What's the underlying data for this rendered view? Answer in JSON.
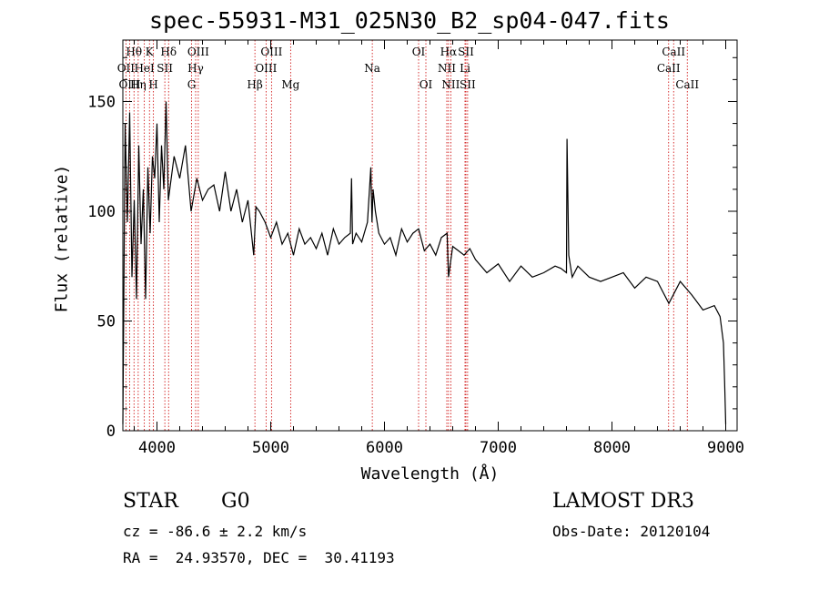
{
  "title": "spec-55931-M31_025N30_B2_sp04-047.fits",
  "footer": {
    "object_class": "STAR",
    "subclass": "G0",
    "survey": "LAMOST DR3",
    "redshift": "cz = -86.6 ± 2.2 km/s",
    "obs_date": "Obs-Date: 20120104",
    "coords": "RA =  24.93570, DEC =  30.41193"
  },
  "chart_data": {
    "type": "line",
    "title": "spec-55931-M31_025N30_B2_sp04-047.fits",
    "xlabel": "Wavelength (Å)",
    "ylabel": "Flux (relative)",
    "xlim": [
      3700,
      9100
    ],
    "ylim": [
      0,
      178
    ],
    "x_ticks": [
      4000,
      5000,
      6000,
      7000,
      8000,
      9000
    ],
    "x_tick_labels": [
      "4000",
      "5000",
      "6000",
      "7000",
      "8000",
      "9000"
    ],
    "y_ticks": [
      0,
      50,
      100,
      150
    ],
    "y_tick_labels": [
      "0",
      "50",
      "100",
      "150"
    ],
    "grid": false,
    "legend": "none",
    "line_color": "#000000",
    "marker_color": "#cc0000",
    "series": [
      {
        "x": [
          3700,
          3720,
          3740,
          3760,
          3780,
          3800,
          3820,
          3840,
          3860,
          3880,
          3900,
          3920,
          3940,
          3960,
          3980,
          4000,
          4020,
          4040,
          4060,
          4080,
          4100,
          4150,
          4200,
          4250,
          4300,
          4350,
          4400,
          4450,
          4500,
          4550,
          4600,
          4650,
          4700,
          4750,
          4800,
          4850,
          4870,
          4900,
          4950,
          5000,
          5050,
          5100,
          5150,
          5200,
          5250,
          5300,
          5350,
          5400,
          5450,
          5500,
          5550,
          5600,
          5650,
          5700,
          5710,
          5720,
          5750,
          5800,
          5850,
          5880,
          5890,
          5900,
          5920,
          5950,
          6000,
          6050,
          6100,
          6150,
          6200,
          6250,
          6300,
          6350,
          6400,
          6450,
          6500,
          6550,
          6563,
          6600,
          6650,
          6700,
          6750,
          6800,
          6900,
          7000,
          7100,
          7200,
          7300,
          7400,
          7500,
          7550,
          7600,
          7605,
          7620,
          7650,
          7700,
          7800,
          7900,
          8000,
          8100,
          8200,
          8300,
          8400,
          8500,
          8600,
          8700,
          8800,
          8900,
          8950,
          8980,
          8990,
          9000
        ],
        "y": [
          3,
          140,
          95,
          145,
          70,
          105,
          60,
          130,
          85,
          110,
          60,
          120,
          90,
          125,
          115,
          140,
          95,
          130,
          110,
          150,
          105,
          125,
          115,
          130,
          100,
          115,
          105,
          110,
          112,
          100,
          118,
          100,
          110,
          95,
          105,
          80,
          102,
          100,
          95,
          88,
          95,
          85,
          90,
          80,
          92,
          85,
          88,
          83,
          90,
          80,
          92,
          85,
          88,
          90,
          115,
          85,
          90,
          86,
          95,
          120,
          95,
          110,
          100,
          90,
          85,
          88,
          80,
          92,
          86,
          90,
          92,
          82,
          85,
          80,
          88,
          90,
          70,
          84,
          82,
          80,
          83,
          78,
          72,
          76,
          68,
          75,
          70,
          72,
          75,
          74,
          72,
          133,
          80,
          70,
          75,
          70,
          68,
          70,
          72,
          65,
          70,
          68,
          58,
          68,
          62,
          55,
          57,
          52,
          40,
          22,
          3
        ]
      }
    ],
    "line_markers": [
      {
        "label": "Hθ",
        "x": 3798,
        "row": 1
      },
      {
        "label": "OII",
        "x": 3727,
        "row": 2
      },
      {
        "label": "OIII",
        "x": 3760,
        "row": 3
      },
      {
        "label": "K",
        "x": 3934,
        "row": 1
      },
      {
        "label": "HeI",
        "x": 3889,
        "row": 2
      },
      {
        "label": "Hη",
        "x": 3835,
        "row": 3
      },
      {
        "label": "SII",
        "x": 4069,
        "row": 2
      },
      {
        "label": "H",
        "x": 3969,
        "row": 3
      },
      {
        "label": "Hδ",
        "x": 4102,
        "row": 1
      },
      {
        "label": "OIII",
        "x": 4363,
        "row": 1
      },
      {
        "label": "Hγ",
        "x": 4340,
        "row": 2
      },
      {
        "label": "G",
        "x": 4304,
        "row": 3
      },
      {
        "label": "Hβ",
        "x": 4861,
        "row": 3
      },
      {
        "label": "OIII",
        "x": 5007,
        "row": 1
      },
      {
        "label": "OIII",
        "x": 4959,
        "row": 2
      },
      {
        "label": "Mg",
        "x": 5175,
        "row": 3
      },
      {
        "label": "Na",
        "x": 5893,
        "row": 2
      },
      {
        "label": "OI",
        "x": 6300,
        "row": 1
      },
      {
        "label": "OI",
        "x": 6364,
        "row": 3
      },
      {
        "label": "Hα",
        "x": 6563,
        "row": 1
      },
      {
        "label": "SII",
        "x": 6716,
        "row": 1
      },
      {
        "label": "NII",
        "x": 6548,
        "row": 2
      },
      {
        "label": "Li",
        "x": 6708,
        "row": 2
      },
      {
        "label": "NII",
        "x": 6583,
        "row": 3
      },
      {
        "label": "SII",
        "x": 6731,
        "row": 3
      },
      {
        "label": "CaII",
        "x": 8542,
        "row": 1
      },
      {
        "label": "CaII",
        "x": 8498,
        "row": 2
      },
      {
        "label": "CaII",
        "x": 8662,
        "row": 3
      }
    ]
  }
}
